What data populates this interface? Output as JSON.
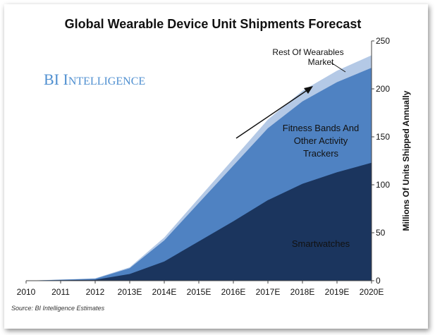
{
  "source": "Source: BI Intelligence Estimates",
  "brand": {
    "first": "BI ",
    "second_initial": "I",
    "second_rest": "NTELLIGENCE"
  },
  "colors": {
    "smartwatches": "#1b355e",
    "fitness": "#4f82c2",
    "rest": "#b4c9e6"
  },
  "chart_data": {
    "type": "area",
    "stacked": true,
    "title": "Global Wearable Device Unit Shipments Forecast",
    "xlabel": "",
    "ylabel": "Millions Of Units Shipped Annually",
    "categories": [
      "2010",
      "2011",
      "2012",
      "2013E",
      "2014E",
      "2015E",
      "2016E",
      "2017E",
      "2018E",
      "2019E",
      "2020E"
    ],
    "ylim": [
      0,
      250
    ],
    "yticks": [
      "0",
      "50",
      "100",
      "150",
      "200",
      "250"
    ],
    "series": [
      {
        "name": "Smartwatches",
        "values": [
          0,
          0.5,
          1,
          7,
          20,
          41,
          62,
          84,
          101,
          113,
          123
        ]
      },
      {
        "name": "Fitness Bands And Other Activity Trackers",
        "values": [
          0,
          0.5,
          1,
          6,
          22,
          40,
          58,
          75,
          86,
          94,
          99
        ]
      },
      {
        "name": "Rest Of Wearables Market",
        "values": [
          0,
          0.2,
          0.5,
          1,
          3,
          5,
          7,
          9,
          11,
          12,
          13
        ]
      }
    ],
    "labels": {
      "smartwatches": "Smartwatches",
      "fitness_line1": "Fitness Bands And",
      "fitness_line2": "Other Activity",
      "fitness_line3": "Trackers",
      "rest_line1": "Rest Of Wearables",
      "rest_line2": "Market"
    }
  }
}
